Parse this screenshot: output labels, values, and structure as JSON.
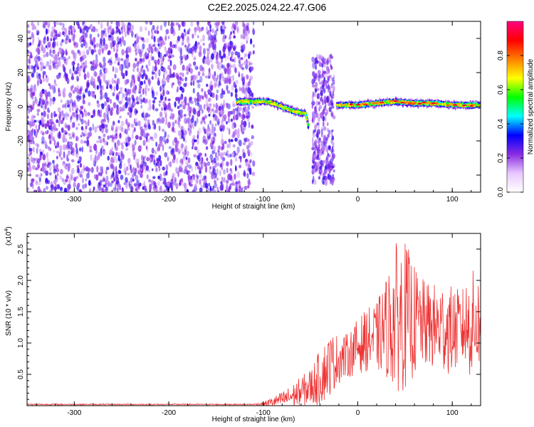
{
  "title": "C2E2.2025.024.22.47.G06",
  "chart_data": [
    {
      "type": "heatmap",
      "name": "spectrogram",
      "xlabel": "Height of straight line (km)",
      "ylabel": "Frequency (Hz)",
      "xlim": [
        -350,
        130
      ],
      "ylim": [
        -50,
        50
      ],
      "xticks": [
        -300,
        -200,
        -100,
        0,
        100
      ],
      "yticks": [
        -40,
        -20,
        0,
        20,
        40
      ],
      "colorbar": {
        "label": "Normalized spectral amplitude",
        "range": [
          0.0,
          1.0
        ],
        "ticks": [
          "0.0",
          "0.2",
          "0.4",
          "0.6",
          "0.8"
        ],
        "colors": [
          "#ffffff",
          "#e8c8ff",
          "#8a2be2",
          "#0000ff",
          "#00ffff",
          "#00ff00",
          "#ffff00",
          "#ff8000",
          "#ff0000",
          "#ff0080"
        ]
      },
      "regions": [
        {
          "label": "noise",
          "x_range": [
            -350,
            -110
          ],
          "y_range": [
            -50,
            50
          ],
          "amplitude": 0.12
        },
        {
          "label": "signal-left",
          "points": [
            [
              -128,
              3
            ],
            [
              -110,
              3
            ],
            [
              -95,
              3
            ],
            [
              -85,
              1
            ],
            [
              -75,
              -1
            ],
            [
              -65,
              -3
            ],
            [
              -55,
              -4
            ],
            [
              -52,
              -12
            ]
          ],
          "amplitude": 0.6
        },
        {
          "label": "vertical-burst",
          "x_range": [
            -48,
            -25
          ],
          "y_range": [
            -45,
            30
          ],
          "amplitude": 0.25
        },
        {
          "label": "signal-right",
          "points": [
            [
              -22,
              1
            ],
            [
              0,
              1
            ],
            [
              20,
              2
            ],
            [
              40,
              3
            ],
            [
              60,
              2
            ],
            [
              80,
              2
            ],
            [
              100,
              1
            ],
            [
              120,
              1
            ],
            [
              130,
              1
            ]
          ],
          "amplitude": 0.85
        }
      ]
    },
    {
      "type": "line",
      "name": "snr",
      "xlabel": "Height of straight line (km)",
      "ylabel": "SNR (10 * v/v)",
      "yscale_label": "(x10",
      "yscale_exp": "4",
      "xlim": [
        -350,
        130
      ],
      "ylim": [
        0,
        2.75
      ],
      "xticks": [
        -300,
        -200,
        -100,
        0,
        100
      ],
      "yticks": [
        "0.5",
        "1.0",
        "1.5",
        "2.0",
        "2.5"
      ],
      "color": "#ee3333",
      "envelope": {
        "x": [
          -350,
          -110,
          -100,
          -90,
          -80,
          -70,
          -60,
          -50,
          -40,
          -30,
          -20,
          -10,
          0,
          10,
          20,
          30,
          40,
          50,
          60,
          70,
          80,
          90,
          100,
          110,
          120,
          130
        ],
        "mean": [
          0.02,
          0.02,
          0.03,
          0.06,
          0.1,
          0.15,
          0.22,
          0.3,
          0.45,
          0.65,
          0.75,
          0.8,
          0.95,
          1.05,
          1.1,
          1.25,
          1.4,
          1.45,
          1.35,
          1.3,
          1.25,
          1.25,
          1.2,
          1.25,
          1.3,
          1.35
        ],
        "amp": [
          0.01,
          0.01,
          0.03,
          0.08,
          0.12,
          0.18,
          0.25,
          0.3,
          0.45,
          0.5,
          0.4,
          0.35,
          0.45,
          0.5,
          0.55,
          0.8,
          1.2,
          1.2,
          0.9,
          0.7,
          0.7,
          0.75,
          0.7,
          0.6,
          0.9,
          0.7
        ]
      }
    }
  ]
}
